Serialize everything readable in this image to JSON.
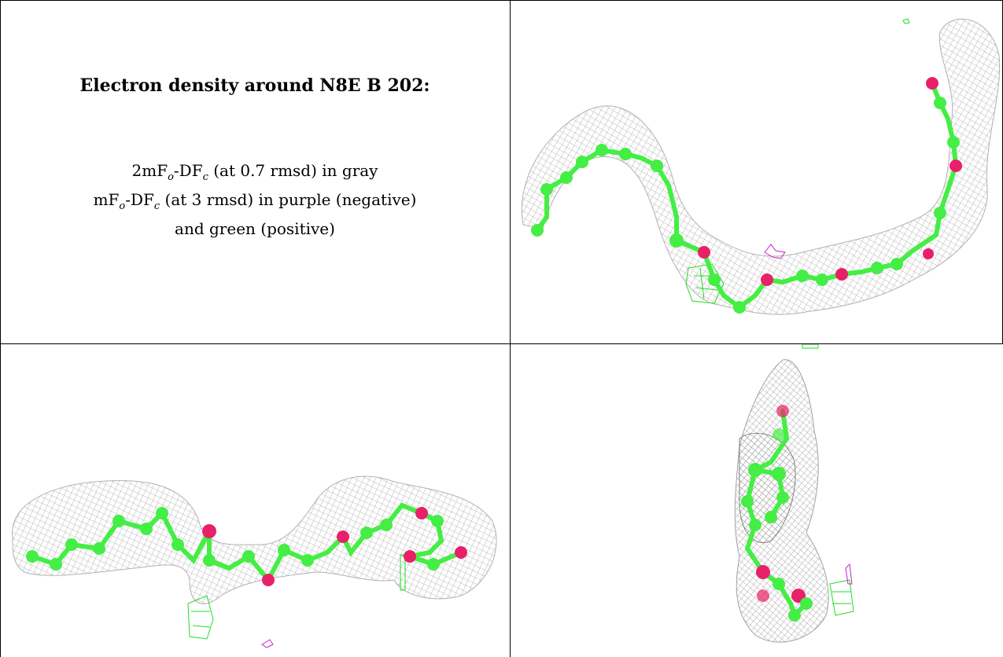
{
  "caption": {
    "title": "Electron density around N8E B 202:",
    "line1": {
      "prefix": "2mF",
      "sub1": "o",
      "mid": "-DF",
      "sub2": "c",
      "suffix": " (at 0.7 rmsd) in gray"
    },
    "line2": {
      "prefix": "mF",
      "sub1": "o",
      "mid": "-DF",
      "sub2": "c",
      "suffix": " (at 3 rmsd) in purple (negative)"
    },
    "line3": "and green (positive)"
  },
  "colors": {
    "carbon": "#44ee44",
    "oxygen": "#e8206a",
    "mesh_2fofc": "#9a9a9a",
    "mesh_positive": "#22dd22",
    "mesh_negative": "#cc22cc"
  },
  "panels": [
    {
      "name": "view-top-right"
    },
    {
      "name": "view-bottom-left"
    },
    {
      "name": "view-bottom-right"
    }
  ]
}
